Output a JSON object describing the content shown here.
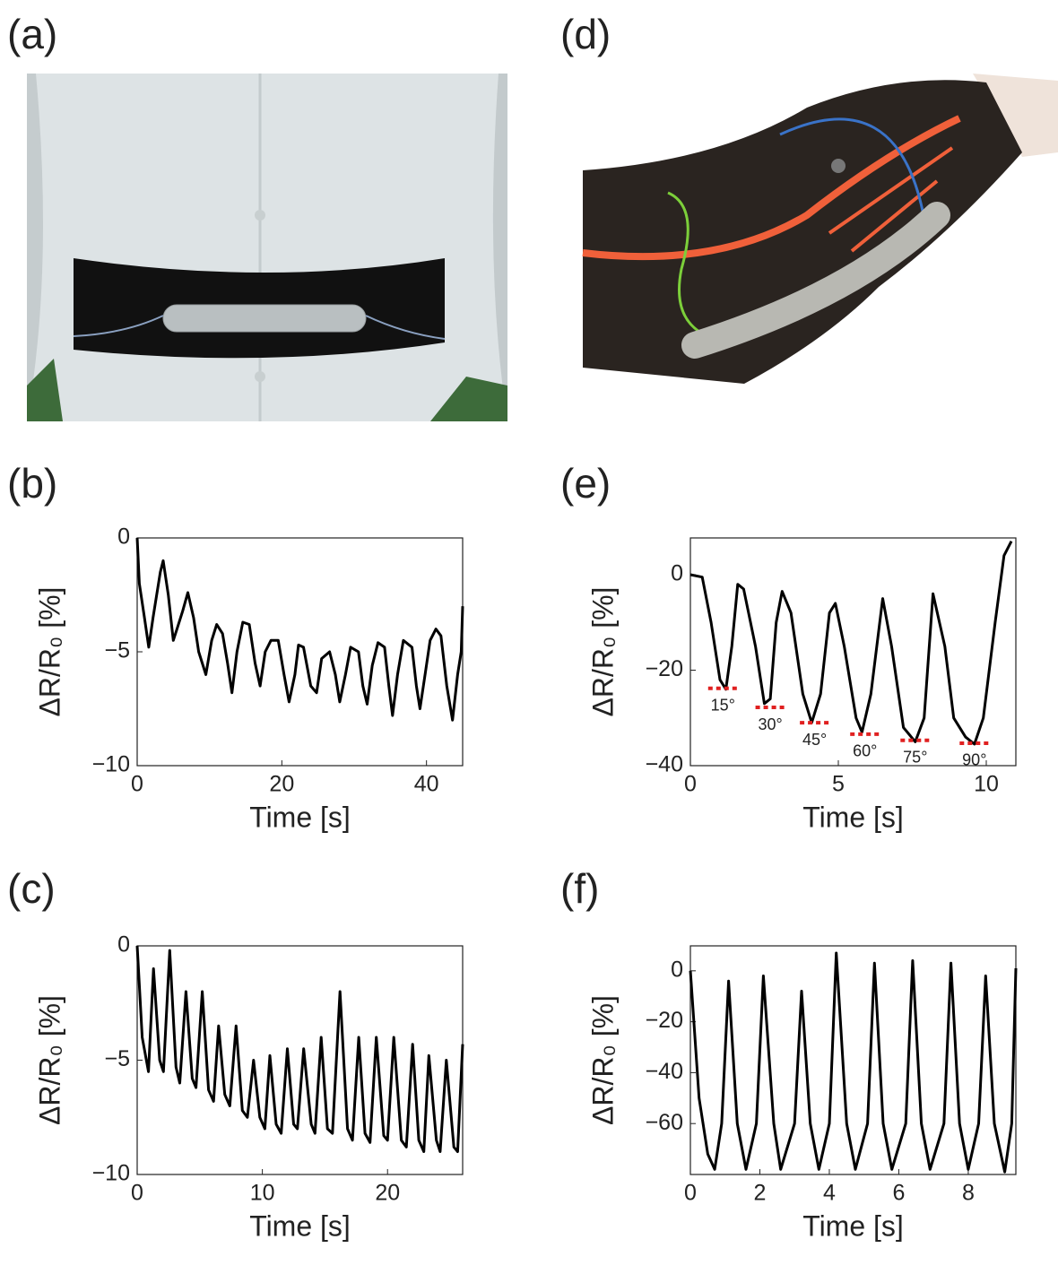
{
  "panel_labels": [
    "(a)",
    "(b)",
    "(c)",
    "(d)",
    "(e)",
    "(f)"
  ],
  "chart_data": [
    {
      "type": "line",
      "xlabel": "Time [s]",
      "ylabel": "ΔR/R₀ [%]",
      "x": [
        0,
        0.3,
        1,
        1.6,
        2.2,
        3.2,
        3.6,
        4.3,
        5,
        5.5,
        6.3,
        7,
        7.8,
        8.5,
        9.5,
        10.3,
        11,
        11.8,
        12.5,
        13.1,
        13.8,
        14.6,
        15.5,
        16.3,
        17,
        17.7,
        18.5,
        19.5,
        20.3,
        21,
        21.8,
        22.3,
        23,
        24,
        24.8,
        25.5,
        26.6,
        27.4,
        28,
        28.8,
        29.5,
        30.6,
        31.2,
        31.8,
        32.5,
        33.3,
        34.2,
        34.8,
        35.3,
        36,
        36.8,
        38,
        38.6,
        39.1,
        39.8,
        40.5,
        41.3,
        42,
        42.8,
        43.6,
        44.3,
        44.8,
        45
      ],
      "series": [
        {
          "color": "#000000",
          "values": [
            0,
            -2,
            -3.5,
            -4.8,
            -3.5,
            -1.5,
            -1,
            -2.5,
            -4.5,
            -4,
            -3.2,
            -2.4,
            -3.5,
            -5,
            -6,
            -4.5,
            -3.8,
            -4.2,
            -5.5,
            -6.8,
            -5,
            -3.7,
            -3.8,
            -5.5,
            -6.5,
            -5,
            -4.5,
            -4.5,
            -6,
            -7.2,
            -6,
            -4.7,
            -4.8,
            -6.5,
            -6.8,
            -5.3,
            -5,
            -6,
            -7.2,
            -6,
            -4.8,
            -5,
            -6.5,
            -7.3,
            -5.6,
            -4.6,
            -4.8,
            -6.5,
            -7.8,
            -6,
            -4.5,
            -4.8,
            -6.5,
            -7.5,
            -6,
            -4.5,
            -4,
            -4.3,
            -6.5,
            -8,
            -6,
            -5,
            -3
          ]
        }
      ],
      "xlim": [
        0,
        45
      ],
      "ylim": [
        -10,
        0
      ],
      "xticks": [
        0,
        20,
        40
      ],
      "yticks": [
        {
          "value": -10,
          "label": "−10"
        },
        {
          "value": -5,
          "label": "−5"
        },
        0
      ]
    },
    {
      "type": "line",
      "xlabel": "Time [s]",
      "ylabel": "ΔR/R₀ [%]",
      "x": [
        0,
        0.4,
        0.9,
        1.3,
        1.8,
        2.1,
        2.6,
        3.1,
        3.4,
        3.9,
        4.4,
        4.7,
        5.2,
        5.7,
        6.1,
        6.5,
        7,
        7.4,
        7.9,
        8.4,
        8.8,
        9.3,
        9.8,
        10.2,
        10.6,
        11.1,
        11.5,
        12,
        12.5,
        12.8,
        13.3,
        13.9,
        14.2,
        14.7,
        15.2,
        15.6,
        16.2,
        16.8,
        17.2,
        17.7,
        18.2,
        18.6,
        19.1,
        19.7,
        20,
        20.5,
        21.1,
        21.5,
        22,
        22.5,
        22.9,
        23.3,
        23.9,
        24.2,
        24.7,
        25.3,
        25.6,
        26
      ],
      "series": [
        {
          "color": "#000000",
          "values": [
            0,
            -4,
            -5.5,
            -1,
            -5,
            -5.5,
            -0.2,
            -5.3,
            -6,
            -2,
            -5.8,
            -6.2,
            -2,
            -6.3,
            -6.8,
            -3.5,
            -6.5,
            -7,
            -3.5,
            -7.2,
            -7.5,
            -5,
            -7.5,
            -8,
            -4.8,
            -7.8,
            -8.2,
            -4.5,
            -7.8,
            -8,
            -4.5,
            -7.8,
            -8.2,
            -4,
            -8,
            -8.2,
            -2,
            -8,
            -8.5,
            -4,
            -8.2,
            -8.6,
            -4,
            -8.3,
            -8.5,
            -4,
            -8.5,
            -8.8,
            -4.3,
            -8.5,
            -9,
            -4.8,
            -8.5,
            -9,
            -5,
            -8.8,
            -9,
            -4.3
          ]
        }
      ],
      "xlim": [
        0,
        26
      ],
      "ylim": [
        -10,
        0
      ],
      "xticks": [
        0,
        10,
        20
      ],
      "yticks": [
        {
          "value": -10,
          "label": "−10"
        },
        {
          "value": -5,
          "label": "−5"
        },
        0
      ]
    },
    {
      "type": "line",
      "xlabel": "Time [s]",
      "ylabel": "ΔR/R₀ [%]",
      "x": [
        0,
        0.4,
        0.7,
        1,
        1.2,
        1.4,
        1.6,
        1.8,
        2.2,
        2.5,
        2.7,
        2.9,
        3.1,
        3.4,
        3.8,
        4.1,
        4.4,
        4.7,
        4.9,
        5.2,
        5.6,
        5.8,
        6.1,
        6.5,
        6.8,
        7.2,
        7.6,
        7.9,
        8.2,
        8.6,
        8.9,
        9.3,
        9.6,
        9.9,
        10.3,
        10.6,
        10.85
      ],
      "series": [
        {
          "color": "#000000",
          "values": [
            0,
            -0.5,
            -10,
            -22,
            -24,
            -15,
            -2,
            -3,
            -15,
            -27,
            -26,
            -10,
            -3.5,
            -8,
            -25,
            -31,
            -25,
            -8,
            -6,
            -15,
            -30,
            -33,
            -25,
            -5,
            -15,
            -32,
            -35,
            -30,
            -4,
            -15,
            -30,
            -34,
            -35.5,
            -30,
            -10,
            4,
            7
          ]
        }
      ],
      "xlim": [
        0,
        11
      ],
      "ylim": [
        -40,
        7.7
      ],
      "xticks": [
        0,
        5,
        10
      ],
      "yticks": [
        {
          "value": -40,
          "label": "−40"
        },
        {
          "value": -20,
          "label": "−20"
        },
        0
      ],
      "annotations": [
        {
          "label": "15°",
          "x": [
            0.6,
            1.6
          ],
          "y": -23.8
        },
        {
          "label": "30°",
          "x": [
            2.2,
            3.2
          ],
          "y": -27.8
        },
        {
          "label": "45°",
          "x": [
            3.7,
            4.7
          ],
          "y": -31
        },
        {
          "label": "60°",
          "x": [
            5.4,
            6.4
          ],
          "y": -33.4
        },
        {
          "label": "75°",
          "x": [
            7.1,
            8.1
          ],
          "y": -34.7
        },
        {
          "label": "90°",
          "x": [
            9.1,
            10.1
          ],
          "y": -35.3
        }
      ]
    },
    {
      "type": "line",
      "xlabel": "Time [s]",
      "ylabel": "ΔR/R₀ [%]",
      "x": [
        0,
        0.25,
        0.5,
        0.7,
        0.9,
        1.1,
        1.35,
        1.6,
        1.9,
        2.1,
        2.4,
        2.6,
        3,
        3.2,
        3.45,
        3.7,
        4,
        4.2,
        4.5,
        4.75,
        5.1,
        5.3,
        5.55,
        5.8,
        6.2,
        6.4,
        6.65,
        6.9,
        7.3,
        7.5,
        7.75,
        8,
        8.3,
        8.5,
        8.75,
        9.05,
        9.25,
        9.37
      ],
      "series": [
        {
          "color": "#000000",
          "values": [
            0,
            -50,
            -72,
            -78,
            -60,
            -4,
            -60,
            -78,
            -60,
            -2,
            -60,
            -78,
            -60,
            -8,
            -60,
            -78,
            -60,
            7,
            -60,
            -78,
            -60,
            3,
            -60,
            -78,
            -60,
            4,
            -60,
            -78,
            -60,
            3,
            -60,
            -78,
            -60,
            -2,
            -60,
            -79,
            -60,
            1
          ]
        }
      ],
      "xlim": [
        0,
        9.37
      ],
      "ylim": [
        -80,
        9.8
      ],
      "xticks": [
        0,
        2,
        4,
        6,
        8
      ],
      "yticks": [
        {
          "value": -60,
          "label": "−60"
        },
        {
          "value": -40,
          "label": "−40"
        },
        {
          "value": -20,
          "label": "−20"
        },
        0
      ]
    }
  ]
}
